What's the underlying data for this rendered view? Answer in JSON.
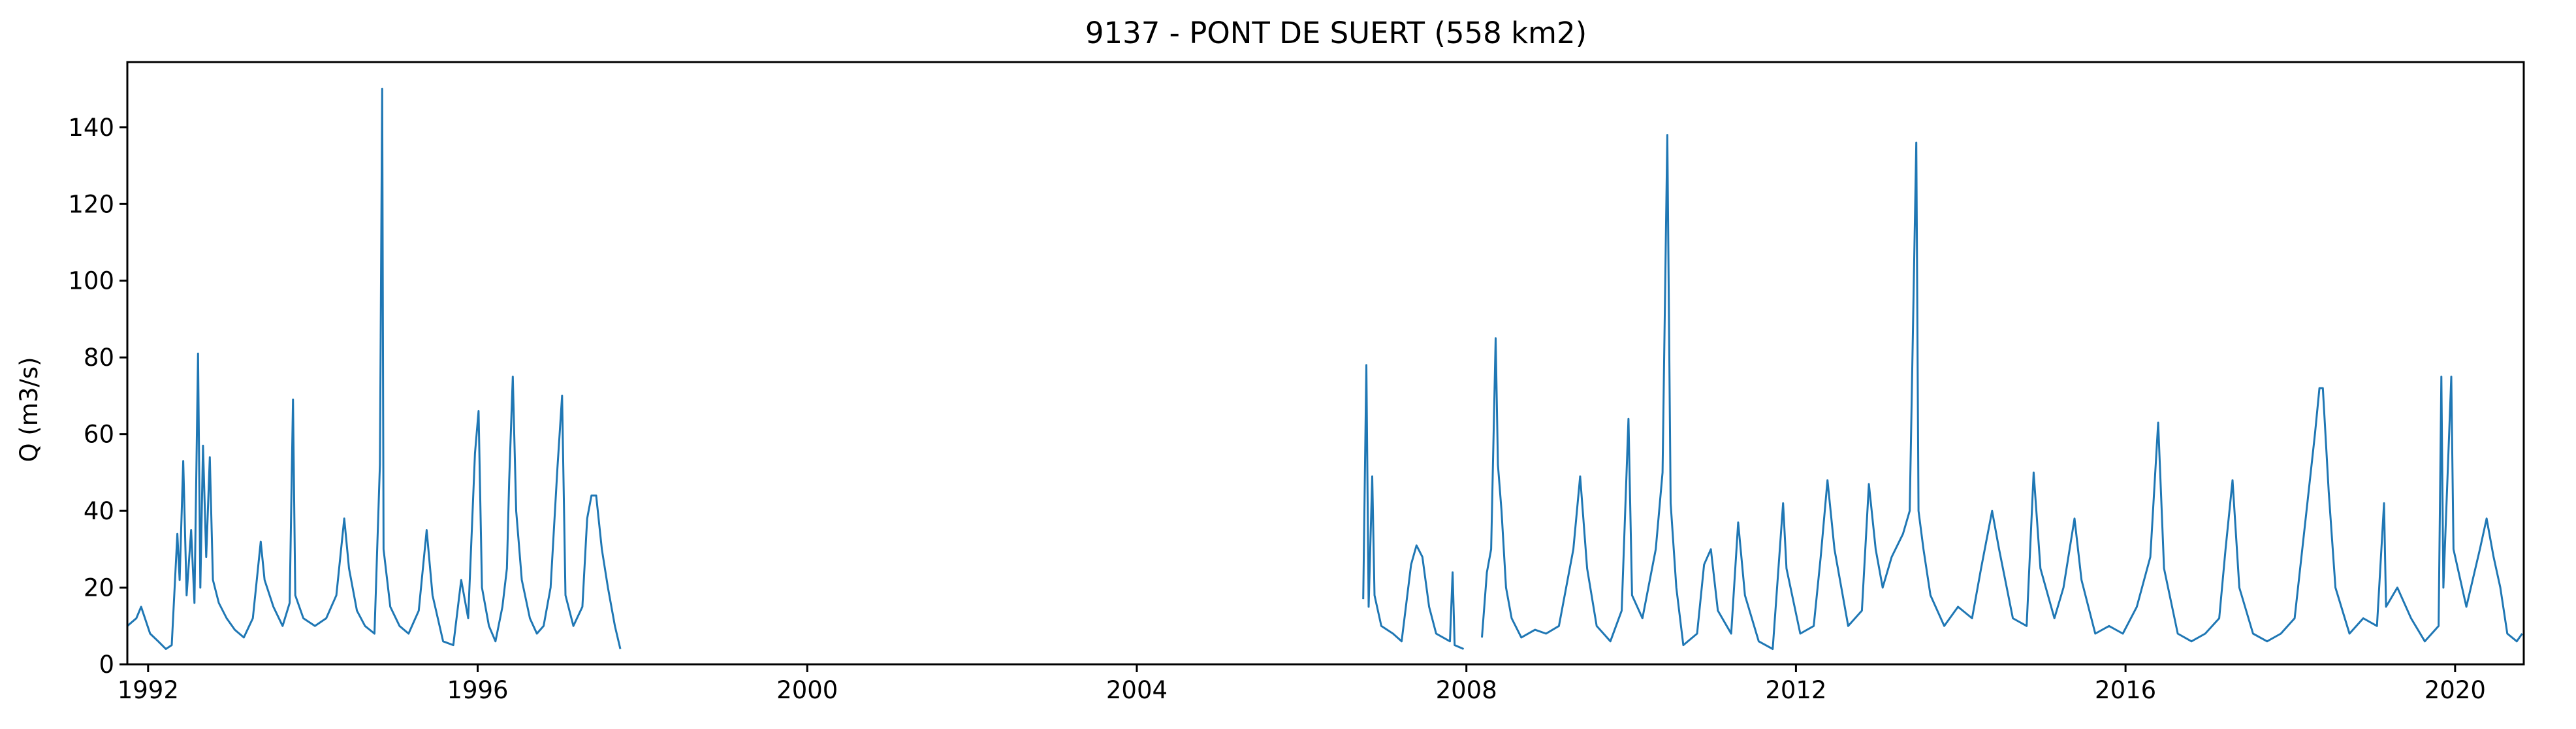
{
  "chart_data": {
    "type": "line",
    "title": "9137 - PONT DE SUERT (558 km2)",
    "xlabel": "",
    "ylabel": "Q (m3/s)",
    "x_axis_type": "date",
    "xlim": [
      "1991-10-01",
      "2020-11-01"
    ],
    "ylim": [
      0,
      157
    ],
    "x_ticks": [
      "1992",
      "1996",
      "2000",
      "2004",
      "2008",
      "2012",
      "2016",
      "2020"
    ],
    "y_ticks": [
      0,
      20,
      40,
      60,
      80,
      100,
      120,
      140
    ],
    "grid": false,
    "legend": "none",
    "series": [
      {
        "color": "#1f77b4",
        "segments": [
          {
            "points": [
              [
                "1991-10-01",
                10
              ],
              [
                "1991-11-10",
                12
              ],
              [
                "1991-12-01",
                15
              ],
              [
                "1992-01-10",
                8
              ],
              [
                "1992-02-15",
                6
              ],
              [
                "1992-03-20",
                4
              ],
              [
                "1992-04-15",
                5
              ],
              [
                "1992-05-10",
                34
              ],
              [
                "1992-05-20",
                22
              ],
              [
                "1992-06-05",
                53
              ],
              [
                "1992-06-20",
                18
              ],
              [
                "1992-07-10",
                35
              ],
              [
                "1992-07-25",
                16
              ],
              [
                "1992-08-10",
                81
              ],
              [
                "1992-08-20",
                20
              ],
              [
                "1992-09-01",
                57
              ],
              [
                "1992-09-15",
                28
              ],
              [
                "1992-10-01",
                54
              ],
              [
                "1992-10-15",
                22
              ],
              [
                "1992-11-10",
                16
              ],
              [
                "1992-12-15",
                12
              ],
              [
                "1993-01-20",
                9
              ],
              [
                "1993-03-01",
                7
              ],
              [
                "1993-04-10",
                12
              ],
              [
                "1993-05-15",
                32
              ],
              [
                "1993-06-01",
                22
              ],
              [
                "1993-07-10",
                15
              ],
              [
                "1993-08-20",
                10
              ],
              [
                "1993-09-20",
                16
              ],
              [
                "1993-10-05",
                69
              ],
              [
                "1993-10-15",
                18
              ],
              [
                "1993-11-20",
                12
              ],
              [
                "1994-01-10",
                10
              ],
              [
                "1994-03-01",
                12
              ],
              [
                "1994-04-15",
                18
              ],
              [
                "1994-05-20",
                38
              ],
              [
                "1994-06-10",
                25
              ],
              [
                "1994-07-15",
                14
              ],
              [
                "1994-08-20",
                10
              ],
              [
                "1994-10-01",
                8
              ],
              [
                "1994-10-25",
                52
              ],
              [
                "1994-11-04",
                150
              ],
              [
                "1994-11-10",
                30
              ],
              [
                "1994-12-10",
                15
              ],
              [
                "1995-01-20",
                10
              ],
              [
                "1995-03-01",
                8
              ],
              [
                "1995-04-15",
                14
              ],
              [
                "1995-05-20",
                35
              ],
              [
                "1995-06-15",
                18
              ],
              [
                "1995-08-01",
                6
              ],
              [
                "1995-09-15",
                5
              ],
              [
                "1995-10-20",
                22
              ],
              [
                "1995-11-20",
                12
              ],
              [
                "1995-12-20",
                55
              ],
              [
                "1996-01-05",
                66
              ],
              [
                "1996-01-20",
                20
              ],
              [
                "1996-02-20",
                10
              ],
              [
                "1996-03-20",
                6
              ],
              [
                "1996-04-20",
                15
              ],
              [
                "1996-05-10",
                25
              ],
              [
                "1996-05-20",
                48
              ],
              [
                "1996-06-05",
                75
              ],
              [
                "1996-06-20",
                40
              ],
              [
                "1996-07-15",
                22
              ],
              [
                "1996-08-20",
                12
              ],
              [
                "1996-09-20",
                8
              ],
              [
                "1996-10-20",
                10
              ],
              [
                "1996-11-20",
                20
              ],
              [
                "1996-12-20",
                51
              ],
              [
                "1997-01-10",
                70
              ],
              [
                "1997-01-25",
                18
              ],
              [
                "1997-03-01",
                10
              ],
              [
                "1997-04-10",
                15
              ],
              [
                "1997-05-01",
                38
              ],
              [
                "1997-05-20",
                44
              ],
              [
                "1997-06-10",
                44
              ],
              [
                "1997-07-05",
                30
              ],
              [
                "1997-08-01",
                20
              ],
              [
                "1997-09-01",
                10
              ],
              [
                "1997-09-25",
                4
              ]
            ]
          },
          {
            "points": [
              [
                "2006-10-01",
                17
              ],
              [
                "2006-10-15",
                78
              ],
              [
                "2006-10-25",
                15
              ],
              [
                "2006-11-10",
                49
              ],
              [
                "2006-11-20",
                18
              ],
              [
                "2006-12-20",
                10
              ],
              [
                "2007-02-10",
                8
              ],
              [
                "2007-03-20",
                6
              ],
              [
                "2007-05-01",
                26
              ],
              [
                "2007-05-25",
                31
              ],
              [
                "2007-06-20",
                28
              ],
              [
                "2007-07-20",
                15
              ],
              [
                "2007-08-20",
                8
              ],
              [
                "2007-10-20",
                6
              ],
              [
                "2007-11-01",
                24
              ],
              [
                "2007-11-10",
                5
              ],
              [
                "2007-12-20",
                4
              ]
            ]
          },
          {
            "points": [
              [
                "2008-03-10",
                7
              ],
              [
                "2008-04-01",
                24
              ],
              [
                "2008-04-20",
                30
              ],
              [
                "2008-05-10",
                85
              ],
              [
                "2008-05-20",
                52
              ],
              [
                "2008-06-05",
                40
              ],
              [
                "2008-06-25",
                20
              ],
              [
                "2008-07-20",
                12
              ],
              [
                "2008-09-01",
                7
              ],
              [
                "2008-11-01",
                9
              ],
              [
                "2008-12-20",
                8
              ],
              [
                "2009-02-15",
                10
              ],
              [
                "2009-04-20",
                30
              ],
              [
                "2009-05-20",
                49
              ],
              [
                "2009-06-20",
                25
              ],
              [
                "2009-08-01",
                10
              ],
              [
                "2009-10-01",
                6
              ],
              [
                "2009-11-20",
                14
              ],
              [
                "2009-12-20",
                64
              ],
              [
                "2010-01-05",
                18
              ],
              [
                "2010-02-20",
                12
              ],
              [
                "2010-04-20",
                30
              ],
              [
                "2010-05-20",
                50
              ],
              [
                "2010-06-10",
                138
              ],
              [
                "2010-06-25",
                42
              ],
              [
                "2010-07-20",
                20
              ],
              [
                "2010-08-20",
                5
              ],
              [
                "2010-10-20",
                8
              ],
              [
                "2010-11-20",
                26
              ],
              [
                "2010-12-20",
                30
              ],
              [
                "2011-01-20",
                14
              ],
              [
                "2011-03-20",
                8
              ],
              [
                "2011-04-20",
                37
              ],
              [
                "2011-05-20",
                18
              ],
              [
                "2011-07-20",
                6
              ],
              [
                "2011-09-20",
                4
              ],
              [
                "2011-11-05",
                42
              ],
              [
                "2011-11-20",
                25
              ],
              [
                "2012-01-20",
                8
              ],
              [
                "2012-03-20",
                10
              ],
              [
                "2012-04-20",
                28
              ],
              [
                "2012-05-20",
                48
              ],
              [
                "2012-06-20",
                30
              ],
              [
                "2012-08-20",
                10
              ],
              [
                "2012-10-20",
                14
              ],
              [
                "2012-11-20",
                47
              ],
              [
                "2012-12-20",
                30
              ],
              [
                "2013-01-20",
                20
              ],
              [
                "2013-03-01",
                28
              ],
              [
                "2013-04-20",
                34
              ],
              [
                "2013-05-20",
                40
              ],
              [
                "2013-06-18",
                136
              ],
              [
                "2013-06-28",
                40
              ],
              [
                "2013-07-20",
                30
              ],
              [
                "2013-08-20",
                18
              ],
              [
                "2013-10-20",
                10
              ],
              [
                "2013-12-20",
                15
              ],
              [
                "2014-02-20",
                12
              ],
              [
                "2014-04-01",
                25
              ],
              [
                "2014-05-20",
                40
              ],
              [
                "2014-06-20",
                30
              ],
              [
                "2014-08-20",
                12
              ],
              [
                "2014-10-20",
                10
              ],
              [
                "2014-11-20",
                50
              ],
              [
                "2014-12-20",
                25
              ],
              [
                "2015-02-20",
                12
              ],
              [
                "2015-04-01",
                20
              ],
              [
                "2015-05-20",
                38
              ],
              [
                "2015-06-20",
                22
              ],
              [
                "2015-08-20",
                8
              ],
              [
                "2015-10-20",
                10
              ],
              [
                "2015-12-20",
                8
              ],
              [
                "2016-02-20",
                15
              ],
              [
                "2016-04-20",
                28
              ],
              [
                "2016-05-25",
                63
              ],
              [
                "2016-06-20",
                25
              ],
              [
                "2016-08-20",
                8
              ],
              [
                "2016-10-20",
                6
              ],
              [
                "2016-12-20",
                8
              ],
              [
                "2017-02-20",
                12
              ],
              [
                "2017-03-20",
                30
              ],
              [
                "2017-04-20",
                48
              ],
              [
                "2017-05-20",
                20
              ],
              [
                "2017-07-20",
                8
              ],
              [
                "2017-09-20",
                6
              ],
              [
                "2017-11-20",
                8
              ],
              [
                "2018-01-20",
                12
              ],
              [
                "2018-03-10",
                38
              ],
              [
                "2018-04-20",
                60
              ],
              [
                "2018-05-10",
                72
              ],
              [
                "2018-05-25",
                72
              ],
              [
                "2018-06-20",
                45
              ],
              [
                "2018-07-20",
                20
              ],
              [
                "2018-09-20",
                8
              ],
              [
                "2018-11-20",
                12
              ],
              [
                "2019-01-20",
                10
              ],
              [
                "2019-02-20",
                42
              ],
              [
                "2019-03-01",
                15
              ],
              [
                "2019-04-20",
                20
              ],
              [
                "2019-06-20",
                12
              ],
              [
                "2019-08-20",
                6
              ],
              [
                "2019-10-20",
                10
              ],
              [
                "2019-11-01",
                75
              ],
              [
                "2019-11-10",
                20
              ],
              [
                "2019-12-15",
                75
              ],
              [
                "2019-12-25",
                30
              ],
              [
                "2020-02-20",
                15
              ],
              [
                "2020-04-20",
                30
              ],
              [
                "2020-05-20",
                38
              ],
              [
                "2020-06-20",
                28
              ],
              [
                "2020-07-20",
                20
              ],
              [
                "2020-08-20",
                8
              ],
              [
                "2020-10-01",
                6
              ],
              [
                "2020-10-25",
                8
              ]
            ]
          }
        ]
      }
    ]
  }
}
